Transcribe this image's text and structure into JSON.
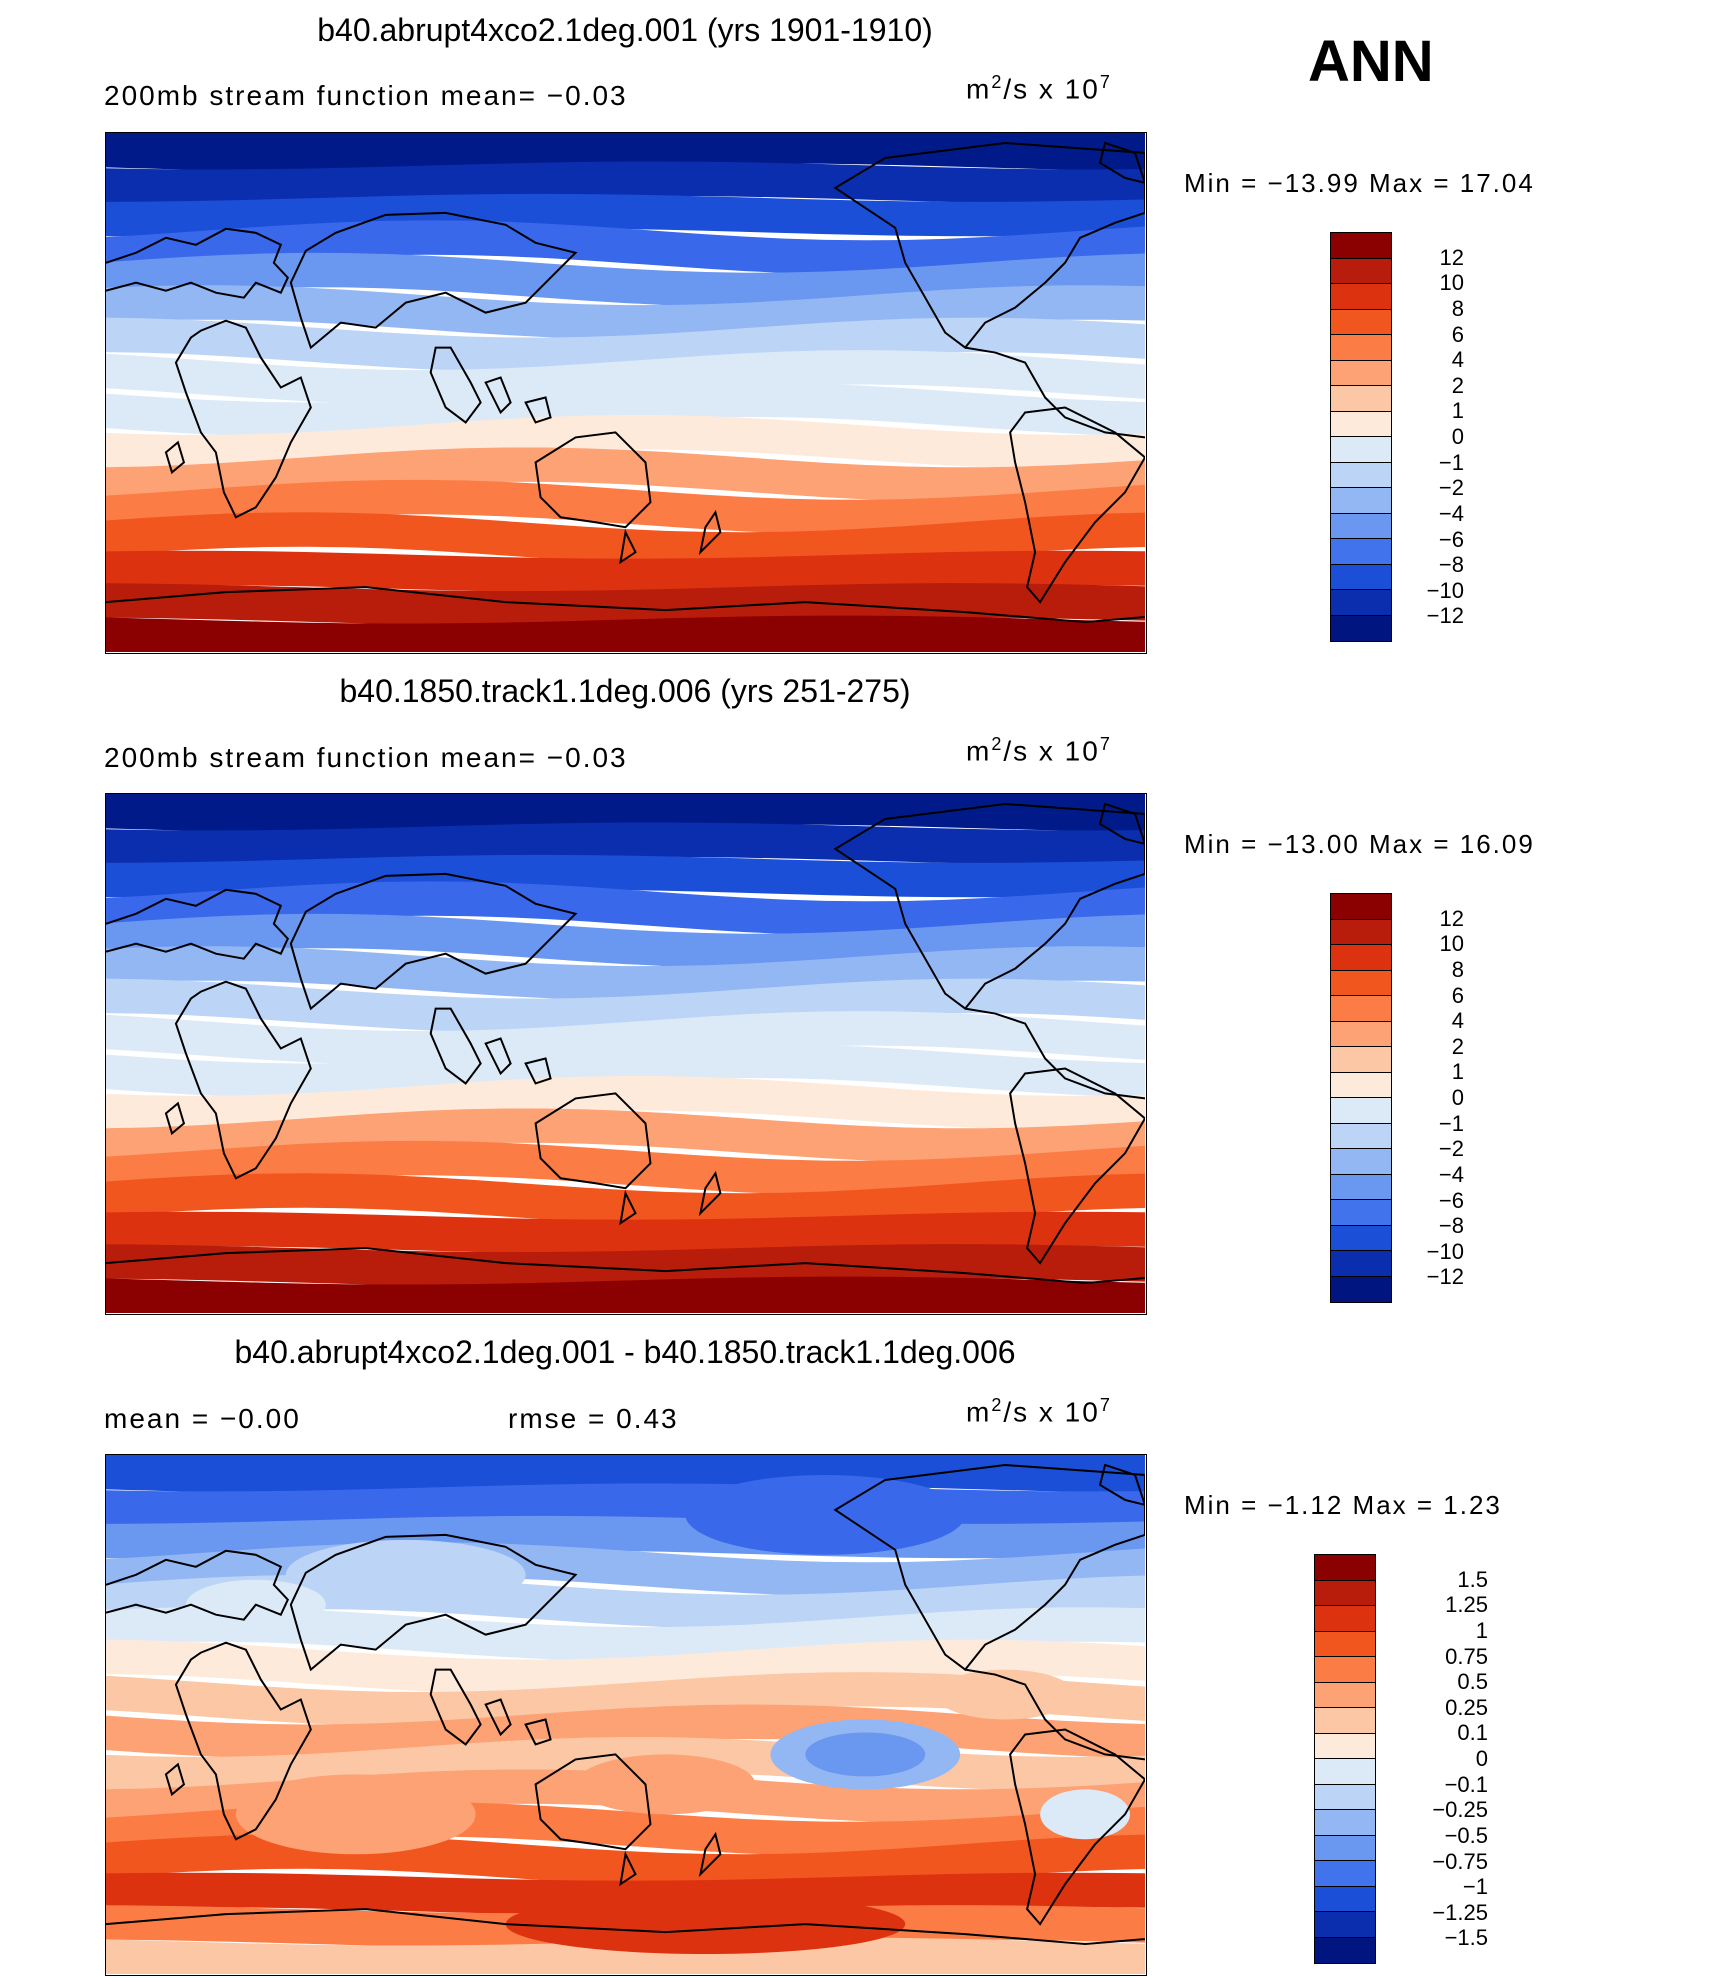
{
  "header": {
    "season": "ANN"
  },
  "panels": [
    {
      "title": "b40.abrupt4xco2.1deg.001 (yrs 1901-1910)",
      "subtitle": "200mb stream function   mean=  −0.03",
      "unit": "m",
      "unit_power_label": "2",
      "unit_mid": "/s x 10",
      "unit_exp": "7",
      "min_max": "Min = −13.99 Max =  17.04",
      "colorbar_labels": [
        "12",
        "10",
        "8",
        "6",
        "4",
        "2",
        "1",
        "0",
        "−1",
        "−2",
        "−4",
        "−6",
        "−8",
        "−10",
        "−12"
      ],
      "colorbar_colors": [
        "#8b0000",
        "#b81c0a",
        "#dd3210",
        "#f2561f",
        "#fb7c45",
        "#fca274",
        "#fcc7a5",
        "#feeadb",
        "#dceaf8",
        "#bcd4f6",
        "#93b7f3",
        "#6a97ef",
        "#4174ec",
        "#1c4fd8",
        "#0b2eae",
        "#00157f"
      ],
      "band_colors": [
        "#001a8a",
        "#0b2eae",
        "#1c4fd8",
        "#3968eb",
        "#6a97ef",
        "#93b7f3",
        "#bcd4f6",
        "#dceaf8",
        "#dceaf8",
        "#feeadb",
        "#fca274",
        "#fb7c45",
        "#f2561f",
        "#dd3210",
        "#b81c0a",
        "#8b0000"
      ]
    },
    {
      "title": "b40.1850.track1.1deg.006 (yrs 251-275)",
      "subtitle": "200mb stream function   mean=  −0.03",
      "unit": "m",
      "unit_power_label": "2",
      "unit_mid": "/s x 10",
      "unit_exp": "7",
      "min_max": "Min = −13.00 Max =  16.09",
      "colorbar_labels": [
        "12",
        "10",
        "8",
        "6",
        "4",
        "2",
        "1",
        "0",
        "−1",
        "−2",
        "−4",
        "−6",
        "−8",
        "−10",
        "−12"
      ],
      "colorbar_colors": [
        "#8b0000",
        "#b81c0a",
        "#dd3210",
        "#f2561f",
        "#fb7c45",
        "#fca274",
        "#fcc7a5",
        "#feeadb",
        "#dceaf8",
        "#bcd4f6",
        "#93b7f3",
        "#6a97ef",
        "#4174ec",
        "#1c4fd8",
        "#0b2eae",
        "#00157f"
      ],
      "band_colors": [
        "#001a8a",
        "#0b2eae",
        "#1c4fd8",
        "#3968eb",
        "#6a97ef",
        "#93b7f3",
        "#bcd4f6",
        "#dceaf8",
        "#dceaf8",
        "#feeadb",
        "#fca274",
        "#fb7c45",
        "#f2561f",
        "#dd3210",
        "#b81c0a",
        "#8b0000"
      ]
    },
    {
      "title": "b40.abrupt4xco2.1deg.001 - b40.1850.track1.1deg.006",
      "subtitle_mean": "mean =  −0.00",
      "subtitle_rmse": "rmse =   0.43",
      "unit": "m",
      "unit_power_label": "2",
      "unit_mid": "/s x 10",
      "unit_exp": "7",
      "min_max": "Min =  −1.12 Max =   1.23",
      "colorbar_labels": [
        "1.5",
        "1.25",
        "1",
        "0.75",
        "0.5",
        "0.25",
        "0.1",
        "0",
        "−0.1",
        "−0.25",
        "−0.5",
        "−0.75",
        "−1",
        "−1.25",
        "−1.5"
      ],
      "colorbar_colors": [
        "#8b0000",
        "#b81c0a",
        "#dd3210",
        "#f2561f",
        "#fb7c45",
        "#fca274",
        "#fcc7a5",
        "#feeadb",
        "#dceaf8",
        "#bcd4f6",
        "#93b7f3",
        "#6a97ef",
        "#4174ec",
        "#1c4fd8",
        "#0b2eae",
        "#00157f"
      ],
      "band_colors": [
        "#1c4fd8",
        "#3968eb",
        "#6a97ef",
        "#93b7f3",
        "#bcd4f6",
        "#dceaf8",
        "#feeadb",
        "#fcc7a5",
        "#fca274",
        "#fcc7a5",
        "#fca274",
        "#fb7c45",
        "#f2561f",
        "#dd3210",
        "#fb7c45",
        "#fcc7a5"
      ]
    }
  ]
}
